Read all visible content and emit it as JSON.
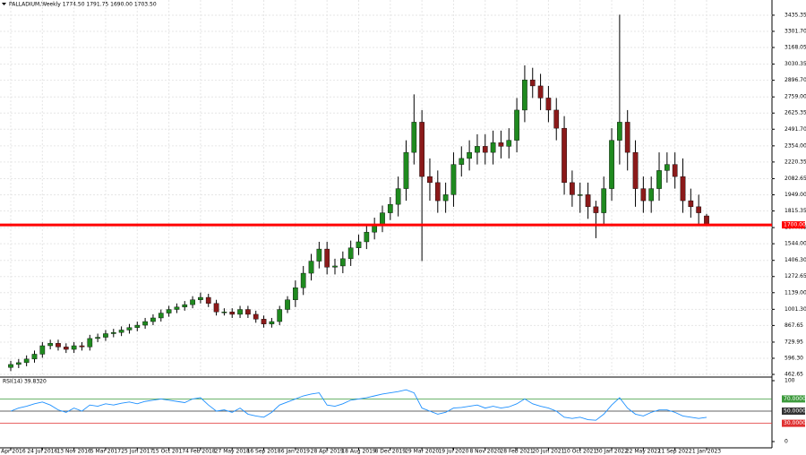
{
  "chart_data": {
    "type": "candlestick",
    "title": "PALLADIUM,Weekly  1774.50 1791.75 1690.00 1703.50",
    "up_color": "#1f8a1f",
    "down_color": "#8b1a1a",
    "wick_color": "#000000",
    "grid": true,
    "x_labels": [
      "3 Apr 2016",
      "24 Jul 2016",
      "13 Nov 2016",
      "5 Mar 2017",
      "25 Jun 2017",
      "15 Oct 2017",
      "4 Feb 2018",
      "27 May 2018",
      "16 Sep 2018",
      "6 Jan 2019",
      "28 Apr 2019",
      "18 Aug 2019",
      "8 Dec 2019",
      "29 Mar 2020",
      "19 Jul 2020",
      "8 Nov 2020",
      "28 Feb 2021",
      "20 Jun 2021",
      "10 Oct 2021",
      "30 Jan 2022",
      "22 May 2022",
      "11 Sep 2022",
      "1 Jan 2023"
    ],
    "open": [
      520,
      545,
      560,
      590,
      630,
      700,
      720,
      690,
      670,
      700,
      690,
      760,
      770,
      800,
      810,
      830,
      850,
      870,
      900,
      930,
      970,
      1000,
      1020,
      1040,
      1080,
      1100,
      1050,
      980,
      980,
      960,
      1000,
      960,
      920,
      880,
      900,
      1000,
      1080,
      1180,
      1300,
      1400,
      1500,
      1350,
      1360,
      1420,
      1510,
      1560,
      1640,
      1700,
      1800,
      1870,
      2000,
      2300,
      2550,
      2100,
      2050,
      1900,
      1950,
      2200,
      2250,
      2300,
      2350,
      2300,
      2380,
      2350,
      2400,
      2650,
      2900,
      2850,
      2750,
      2650,
      2500,
      2050,
      1950,
      1950,
      1850,
      1800,
      2000,
      2400,
      2550,
      2300,
      2000,
      1900,
      2000,
      2150,
      2200,
      2100,
      1900,
      1850,
      1774.5
    ],
    "high": [
      575,
      590,
      620,
      660,
      730,
      750,
      750,
      720,
      730,
      730,
      790,
      800,
      830,
      840,
      860,
      880,
      900,
      930,
      960,
      1000,
      1030,
      1050,
      1070,
      1110,
      1140,
      1130,
      1080,
      1010,
      1010,
      1030,
      1030,
      990,
      950,
      930,
      1030,
      1110,
      1240,
      1360,
      1460,
      1560,
      1560,
      1420,
      1480,
      1570,
      1620,
      1700,
      1760,
      1860,
      1930,
      2100,
      2400,
      2780,
      2650,
      2250,
      2150,
      2050,
      2300,
      2350,
      2400,
      2450,
      2450,
      2480,
      2480,
      2500,
      2750,
      3020,
      3000,
      2950,
      2850,
      2750,
      2600,
      2150,
      2050,
      2050,
      1900,
      2100,
      2500,
      3440,
      2650,
      2400,
      2100,
      2100,
      2300,
      2300,
      2300,
      2250,
      2000,
      1950,
      1791.75
    ],
    "low": [
      490,
      515,
      530,
      560,
      600,
      670,
      660,
      640,
      640,
      660,
      660,
      730,
      740,
      770,
      780,
      800,
      820,
      840,
      870,
      900,
      940,
      970,
      990,
      1010,
      1050,
      1020,
      950,
      950,
      930,
      930,
      930,
      890,
      850,
      850,
      870,
      970,
      1020,
      1120,
      1240,
      1340,
      1290,
      1290,
      1300,
      1360,
      1450,
      1500,
      1580,
      1640,
      1740,
      1770,
      1900,
      2200,
      1400,
      1900,
      1800,
      1800,
      1850,
      2100,
      2150,
      2200,
      2200,
      2200,
      2250,
      2250,
      2300,
      2550,
      2750,
      2650,
      2550,
      2400,
      1950,
      1850,
      1800,
      1750,
      1590,
      1700,
      1900,
      2200,
      2150,
      1850,
      1800,
      1800,
      1900,
      2050,
      2000,
      1800,
      1760,
      1690,
      1690
    ],
    "close": [
      545,
      560,
      590,
      630,
      700,
      720,
      690,
      670,
      700,
      690,
      760,
      770,
      800,
      810,
      830,
      850,
      870,
      900,
      930,
      970,
      1000,
      1020,
      1040,
      1080,
      1100,
      1050,
      980,
      980,
      960,
      1000,
      960,
      920,
      880,
      900,
      1000,
      1080,
      1180,
      1300,
      1400,
      1500,
      1350,
      1360,
      1420,
      1510,
      1560,
      1640,
      1700,
      1800,
      1870,
      2000,
      2300,
      2550,
      2100,
      2050,
      1900,
      1950,
      2200,
      2250,
      2300,
      2350,
      2300,
      2380,
      2350,
      2400,
      2650,
      2900,
      2850,
      2750,
      2650,
      2500,
      2050,
      1950,
      1950,
      1850,
      1800,
      2000,
      2400,
      2550,
      2300,
      2000,
      1900,
      2000,
      2150,
      2200,
      2100,
      1900,
      1850,
      1800,
      1703.5
    ],
    "ylim": [
      448,
      3561
    ],
    "yticks": [
      3435.35,
      {
        "value": 3301.7,
        "label": "3301.70"
      },
      3168.05,
      3030.35,
      {
        "value": 2896.7,
        "label": "2896.70"
      },
      {
        "value": 2759,
        "label": "2759.00"
      },
      2625.35,
      {
        "value": 2491.7,
        "label": "2491.70"
      },
      {
        "value": 2354,
        "label": "2354.00"
      },
      2220.35,
      2082.65,
      {
        "value": 1949,
        "label": "1949.00"
      },
      1815.35,
      1677.65,
      {
        "value": 1544,
        "label": "1544.00"
      },
      {
        "value": 1406.3,
        "label": "1406.30"
      },
      1272.65,
      {
        "value": 1139,
        "label": "1139.00"
      },
      {
        "value": 1001.3,
        "label": "1001.30"
      },
      867.65,
      729.95,
      {
        "value": 596.3,
        "label": "596.30"
      },
      462.65
    ],
    "level": {
      "value": 1700,
      "label": "1700.00",
      "color": "#ff0000"
    },
    "rsi": {
      "title": "RSI(14) 39.8320",
      "color": "#1e90ff",
      "ylim": [
        0,
        100
      ],
      "yticks": [
        100,
        0
      ],
      "levels": [
        {
          "value": 70,
          "label": "70.0000",
          "color": "#3c9a3c"
        },
        {
          "value": 50,
          "label": "50.0000",
          "color": "#333333"
        },
        {
          "value": 30,
          "label": "30.0000",
          "color": "#e03030"
        }
      ],
      "values": [
        50,
        55,
        58,
        62,
        65,
        60,
        52,
        48,
        55,
        50,
        60,
        58,
        62,
        60,
        63,
        65,
        62,
        66,
        68,
        70,
        68,
        66,
        64,
        70,
        72,
        60,
        50,
        52,
        48,
        55,
        45,
        42,
        40,
        48,
        60,
        65,
        70,
        75,
        78,
        80,
        60,
        58,
        62,
        68,
        70,
        72,
        75,
        78,
        80,
        82,
        85,
        80,
        55,
        50,
        45,
        48,
        55,
        56,
        58,
        60,
        55,
        58,
        55,
        57,
        62,
        70,
        62,
        58,
        55,
        50,
        40,
        38,
        40,
        36,
        35,
        45,
        60,
        72,
        55,
        45,
        42,
        48,
        52,
        52,
        48,
        42,
        40,
        38,
        39.832
      ]
    }
  }
}
